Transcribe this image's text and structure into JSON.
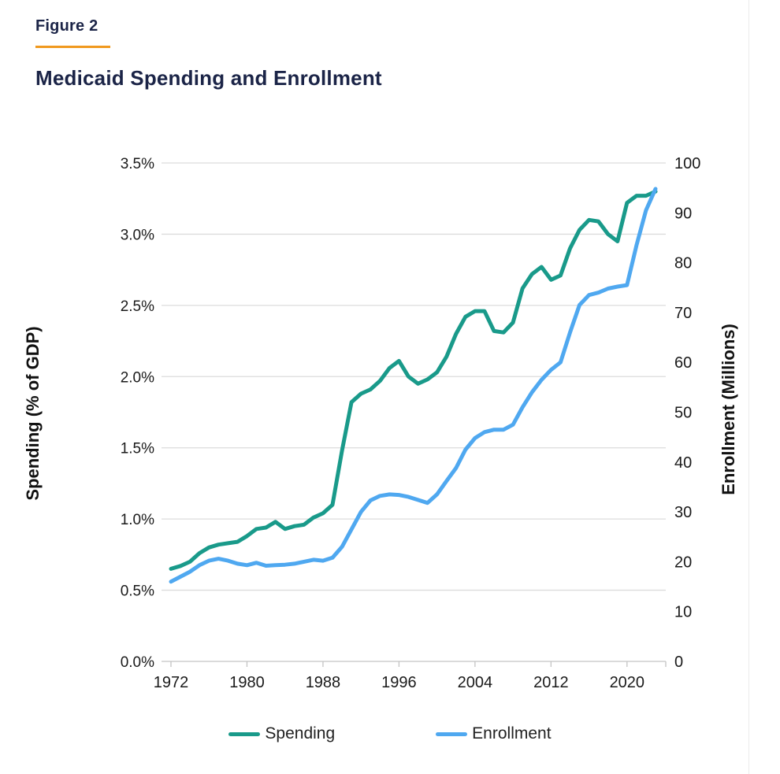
{
  "header": {
    "figure_label": "Figure 2",
    "title": "Medicaid Spending and Enrollment"
  },
  "colors": {
    "heading": "#1b2447",
    "accent_rule": "#f0991e",
    "spending": "#199a8a",
    "enrollment": "#4fa8f0",
    "grid": "#dcdcdc",
    "axis": "#c4c4c4",
    "tick_text": "#1a1a1a"
  },
  "chart_data": {
    "type": "line",
    "title": "Medicaid Spending and Enrollment",
    "x": [
      1972,
      1973,
      1974,
      1975,
      1976,
      1977,
      1978,
      1979,
      1980,
      1981,
      1982,
      1983,
      1984,
      1985,
      1986,
      1987,
      1988,
      1989,
      1990,
      1991,
      1992,
      1993,
      1994,
      1995,
      1996,
      1997,
      1998,
      1999,
      2000,
      2001,
      2002,
      2003,
      2004,
      2005,
      2006,
      2007,
      2008,
      2009,
      2010,
      2011,
      2012,
      2013,
      2014,
      2015,
      2016,
      2017,
      2018,
      2019,
      2020,
      2021,
      2022,
      2023
    ],
    "series": [
      {
        "name": "Spending",
        "axis": "left",
        "color": "#199a8a",
        "values": [
          0.65,
          0.67,
          0.7,
          0.76,
          0.8,
          0.82,
          0.83,
          0.84,
          0.88,
          0.93,
          0.94,
          0.98,
          0.93,
          0.95,
          0.96,
          1.01,
          1.04,
          1.1,
          1.48,
          1.82,
          1.88,
          1.91,
          1.97,
          2.06,
          2.11,
          2.0,
          1.95,
          1.98,
          2.03,
          2.14,
          2.3,
          2.42,
          2.46,
          2.46,
          2.32,
          2.31,
          2.38,
          2.62,
          2.72,
          2.77,
          2.68,
          2.71,
          2.9,
          3.03,
          3.1,
          3.09,
          3.0,
          2.95,
          3.22,
          3.27,
          3.27,
          3.3
        ]
      },
      {
        "name": "Enrollment",
        "axis": "right",
        "color": "#4fa8f0",
        "values": [
          16.0,
          17.0,
          18.0,
          19.3,
          20.2,
          20.6,
          20.2,
          19.6,
          19.3,
          19.8,
          19.2,
          19.3,
          19.4,
          19.6,
          20.0,
          20.4,
          20.2,
          20.8,
          23.0,
          26.5,
          30.0,
          32.3,
          33.2,
          33.5,
          33.4,
          33.0,
          32.4,
          31.8,
          33.5,
          36.2,
          38.8,
          42.5,
          44.8,
          46.0,
          46.5,
          46.5,
          47.5,
          51.0,
          54.0,
          56.5,
          58.5,
          60.0,
          66.0,
          71.5,
          73.5,
          74.0,
          74.8,
          75.2,
          75.5,
          83.5,
          90.5,
          94.8
        ]
      }
    ],
    "left_axis": {
      "label": "Spending (% of GDP)",
      "range": [
        0,
        3.5
      ],
      "tick_values": [
        0.0,
        0.5,
        1.0,
        1.5,
        2.0,
        2.5,
        3.0,
        3.5
      ],
      "tick_labels": [
        "0.0%",
        "0.5%",
        "1.0%",
        "1.5%",
        "2.0%",
        "2.5%",
        "3.0%",
        "3.5%"
      ]
    },
    "right_axis": {
      "label": "Enrollment (Millions)",
      "range": [
        0,
        100
      ],
      "tick_values": [
        0,
        10,
        20,
        30,
        40,
        50,
        60,
        70,
        80,
        90,
        100
      ],
      "tick_labels": [
        "0",
        "10",
        "20",
        "30",
        "40",
        "50",
        "60",
        "70",
        "80",
        "90",
        "100"
      ]
    },
    "x_axis": {
      "tick_years": [
        1972,
        1980,
        1988,
        1996,
        2004,
        2012,
        2020
      ],
      "tick_labels": [
        "1972",
        "1980",
        "1988",
        "1996",
        "2004",
        "2012",
        "2020"
      ]
    },
    "grid": "horizontal",
    "legend_position": "bottom"
  },
  "legend": {
    "items": [
      {
        "label": "Spending",
        "color": "#199a8a"
      },
      {
        "label": "Enrollment",
        "color": "#4fa8f0"
      }
    ]
  }
}
